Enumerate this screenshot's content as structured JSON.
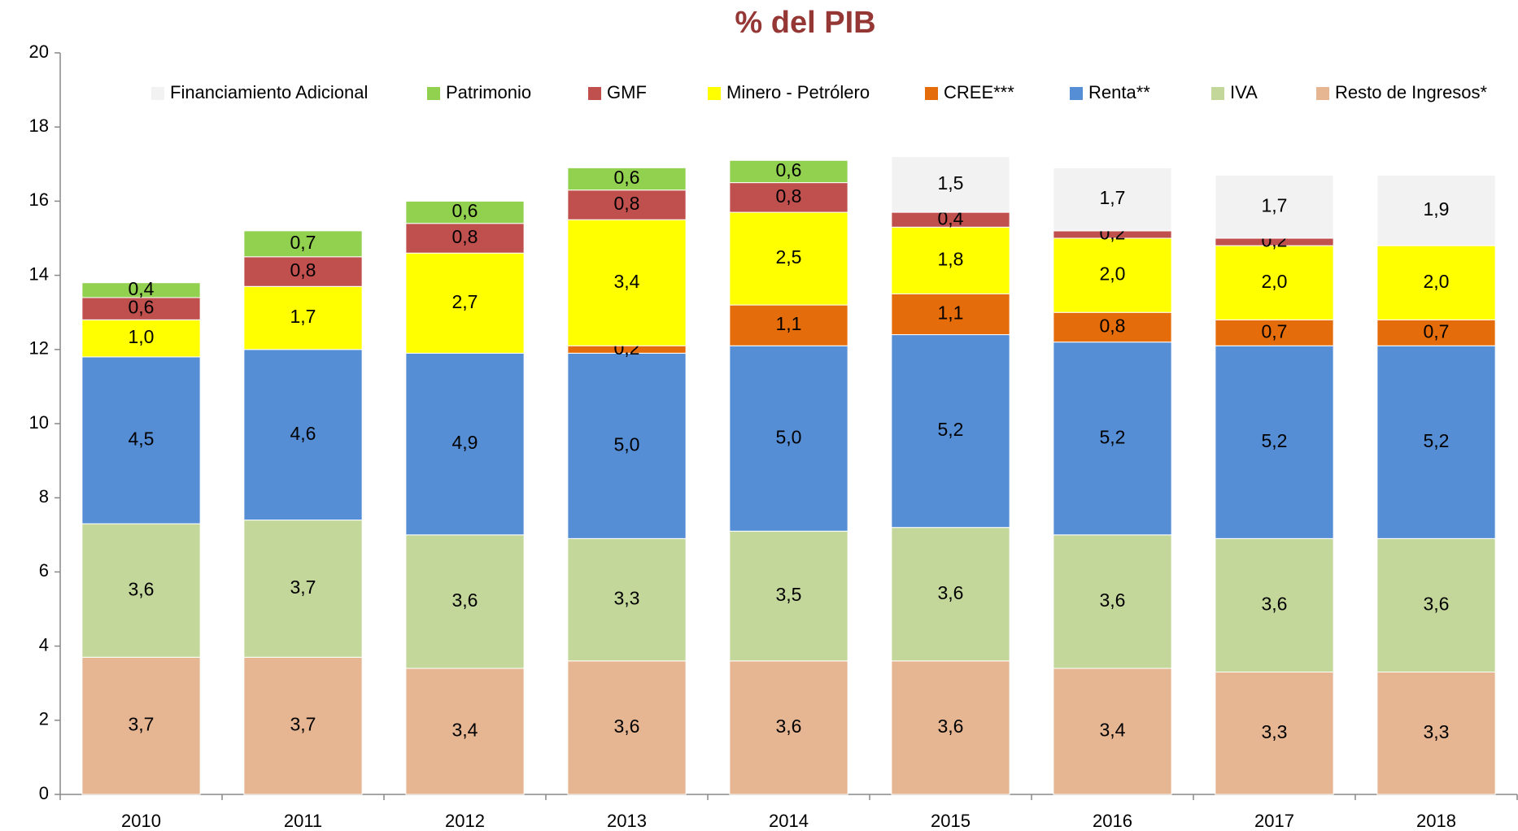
{
  "chart_data": {
    "type": "stacked_bar",
    "title": "% del PIB",
    "categories": [
      "2010",
      "2011",
      "2012",
      "2013",
      "2014",
      "2015",
      "2016",
      "2017",
      "2018"
    ],
    "series": [
      {
        "name": "Resto de Ingresos*",
        "color": "#e6b592",
        "values": [
          3.7,
          3.7,
          3.4,
          3.6,
          3.6,
          3.6,
          3.4,
          3.3,
          3.3
        ],
        "value_labels": [
          "3,7",
          "3,7",
          "3,4",
          "3,6",
          "3,6",
          "3,6",
          "3,4",
          "3,3",
          "3,3"
        ]
      },
      {
        "name": "IVA",
        "color": "#c4d79b",
        "values": [
          3.6,
          3.7,
          3.6,
          3.3,
          3.5,
          3.6,
          3.6,
          3.6,
          3.6
        ],
        "value_labels": [
          "3,6",
          "3,7",
          "3,6",
          "3,3",
          "3,5",
          "3,6",
          "3,6",
          "3,6",
          "3,6"
        ]
      },
      {
        "name": "Renta**",
        "color": "#558ed5",
        "values": [
          4.5,
          4.6,
          4.9,
          5.0,
          5.0,
          5.2,
          5.2,
          5.2,
          5.2
        ],
        "value_labels": [
          "4,5",
          "4,6",
          "4,9",
          "5,0",
          "5,0",
          "5,2",
          "5,2",
          "5,2",
          "5,2"
        ]
      },
      {
        "name": "CREE***",
        "color": "#e46c0a",
        "values": [
          null,
          null,
          null,
          0.2,
          1.1,
          1.1,
          0.8,
          0.7,
          0.7
        ],
        "value_labels": [
          null,
          null,
          null,
          "0,2",
          "1,1",
          "1,1",
          "0,8",
          "0,7",
          "0,7"
        ]
      },
      {
        "name": "Minero - Petrólero",
        "color": "#ffff00",
        "values": [
          1.0,
          1.7,
          2.7,
          3.4,
          2.5,
          1.8,
          2.0,
          2.0,
          2.0
        ],
        "value_labels": [
          "1,0",
          "1,7",
          "2,7",
          "3,4",
          "2,5",
          "1,8",
          "2,0",
          "2,0",
          "2,0"
        ]
      },
      {
        "name": "GMF",
        "color": "#c0504d",
        "values": [
          0.6,
          0.8,
          0.8,
          0.8,
          0.8,
          0.4,
          0.2,
          0.2,
          null
        ],
        "value_labels": [
          "0,6",
          "0,8",
          "0,8",
          "0,8",
          "0,8",
          "0,4",
          "0,2",
          "0,2",
          null
        ]
      },
      {
        "name": "Patrimonio",
        "color": "#92d050",
        "values": [
          0.4,
          0.7,
          0.6,
          0.6,
          0.6,
          null,
          null,
          null,
          null
        ],
        "value_labels": [
          "0,4",
          "0,7",
          "0,6",
          "0,6",
          "0,6",
          null,
          null,
          null,
          null
        ]
      },
      {
        "name": "Financiamiento Adicional",
        "color": "#f2f2f2",
        "values": [
          null,
          null,
          null,
          null,
          null,
          1.5,
          1.7,
          1.7,
          1.9
        ],
        "value_labels": [
          null,
          null,
          null,
          null,
          null,
          "1,5",
          "1,7",
          "1,7",
          "1,9"
        ]
      }
    ],
    "ylim": [
      0,
      20
    ],
    "yticks": [
      0,
      2,
      4,
      6,
      8,
      10,
      12,
      14,
      16,
      18,
      20
    ],
    "grid": false,
    "legend": "top"
  }
}
